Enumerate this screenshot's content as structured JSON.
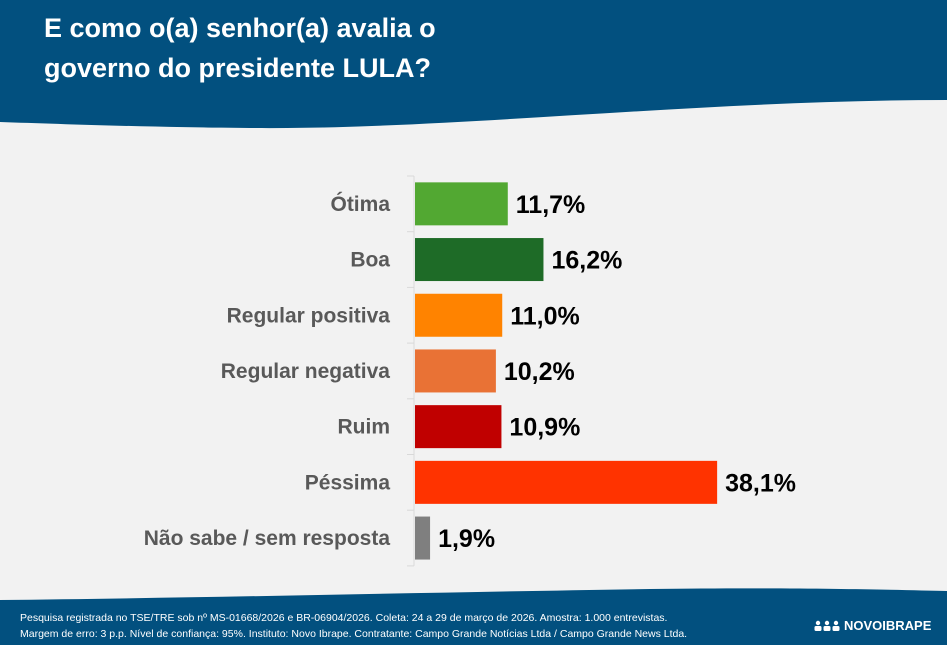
{
  "header": {
    "title_line1": "E como o(a) senhor(a) avalia o",
    "title_line2": "governo do presidente LULA?"
  },
  "chart_data": {
    "type": "bar",
    "orientation": "horizontal",
    "title": "E como o(a) senhor(a) avalia o governo do presidente LULA?",
    "xlabel": "",
    "ylabel": "",
    "xlim": [
      0,
      40
    ],
    "grid": false,
    "legend": "none",
    "categories": [
      "Ótima",
      "Boa",
      "Regular positiva",
      "Regular negativa",
      "Ruim",
      "Péssima",
      "Não sabe / sem resposta"
    ],
    "values": [
      11.7,
      16.2,
      11.0,
      10.2,
      10.9,
      38.1,
      1.9
    ],
    "value_labels": [
      "11,7%",
      "16,2%",
      "11,0%",
      "10,2%",
      "10,9%",
      "38,1%",
      "1,9%"
    ],
    "colors": [
      "#52a832",
      "#1e6b27",
      "#ff8300",
      "#e97235",
      "#c00000",
      "#ff3300",
      "#7f7f7f"
    ]
  },
  "footer": {
    "line1": "Pesquisa registrada no TSE/TRE sob nº MS-01668/2026 e BR-06904/2026. Coleta: 24 a 29 de março de 2026. Amostra: 1.000 entrevistas.",
    "line2": "Margem de erro: 3 p.p. Nível de confiança: 95%. Instituto: Novo Ibrape. Contratante: Campo Grande Notícias Ltda / Campo Grande News Ltda.",
    "brand": "NOVOIBRAPE"
  },
  "colors": {
    "header_bg": "#02507f",
    "page_bg": "#f2f2f2"
  }
}
